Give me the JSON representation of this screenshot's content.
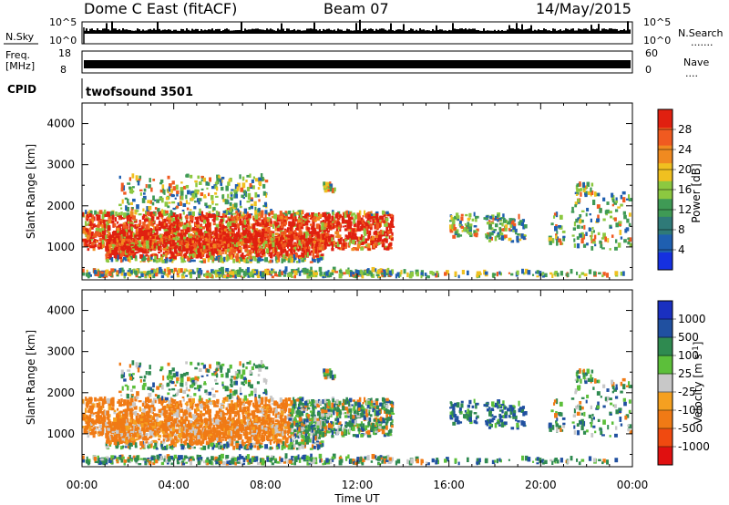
{
  "header": {
    "radar": "Dome C East (fitACF)",
    "beam": "Beam 07",
    "date": "14/May/2015"
  },
  "summary_panels": {
    "nsky_label": "N.Sky",
    "nsearch_label": "N.Search",
    "nsearch_dots": ".......",
    "freq_label": "Freq.",
    "freq_unit": "[MHz]",
    "nave_label": "Nave",
    "nave_dots": "....",
    "cpid_label": "CPID",
    "cpid_value": "twofsound 3501",
    "noise_ticks_left": [
      "10^5",
      "10^0"
    ],
    "noise_ticks_right": [
      "10^5",
      "10^0"
    ],
    "freq_ticks_left": [
      "18",
      "8"
    ],
    "freq_ticks_right": [
      "60",
      "0"
    ]
  },
  "colors": {
    "power_scale": [
      "#1530e0",
      "#1f5fb0",
      "#2f7a78",
      "#3f9a55",
      "#8cc840",
      "#f0c020",
      "#f08a20",
      "#f05a20",
      "#e02010"
    ],
    "velocity_scale": [
      "#e01010",
      "#f04a10",
      "#f07a15",
      "#f5a020",
      "#c8c8c8",
      "#5cbf3a",
      "#2f8a50",
      "#2050a0",
      "#1a30c0"
    ]
  },
  "chart_data": [
    {
      "type": "heatmap",
      "title": "",
      "xlabel": "Time UT",
      "ylabel": "Slant Range [km]",
      "x_ticks": [
        "00:00",
        "04:00",
        "08:00",
        "12:00",
        "16:00",
        "20:00",
        "00:00"
      ],
      "y_ticks": [
        "1000",
        "2000",
        "3000",
        "4000"
      ],
      "xlim_hours": [
        0,
        24
      ],
      "ylim_km": [
        200,
        4500
      ],
      "colorbar_label": "Power [dB]",
      "colorbar_ticks": [
        "4",
        "8",
        "12",
        "16",
        "20",
        "24",
        "28"
      ],
      "colorbar_range": [
        0,
        32
      ]
    },
    {
      "type": "heatmap",
      "title": "",
      "xlabel": "Time UT",
      "ylabel": "Slant Range [km]",
      "x_ticks": [
        "00:00",
        "04:00",
        "08:00",
        "12:00",
        "16:00",
        "20:00",
        "00:00"
      ],
      "y_ticks": [
        "1000",
        "2000",
        "3000",
        "4000"
      ],
      "xlim_hours": [
        0,
        24
      ],
      "ylim_km": [
        200,
        4500
      ],
      "colorbar_label": "Velocity [m s",
      "colorbar_label_sup": "-1",
      "colorbar_label_end": "]",
      "colorbar_ticks": [
        "1000",
        "500",
        "100",
        "25",
        "-25",
        "-100",
        "-500",
        "-1000"
      ]
    }
  ]
}
